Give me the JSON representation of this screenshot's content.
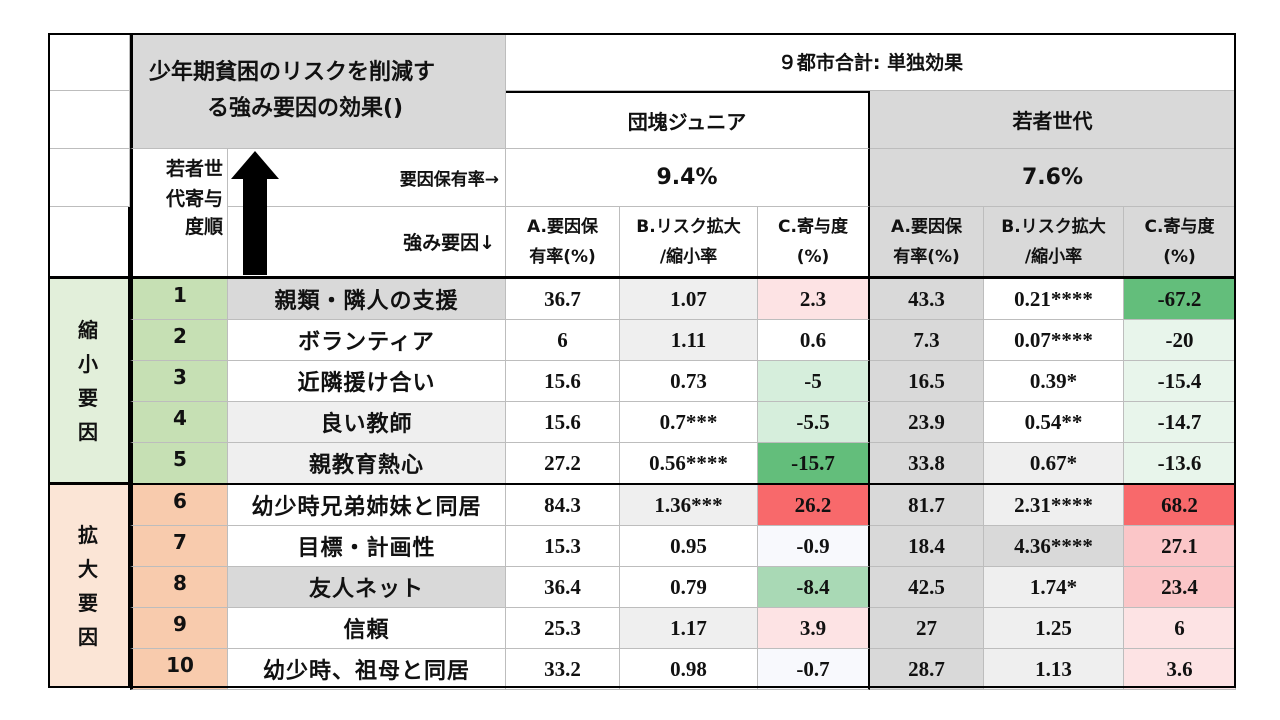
{
  "title_line1": "少年期貧困のリスクを削減す",
  "title_line2": "る強み要因の効果()",
  "city_header": "９都市合計: 単独効果",
  "group1": "団塊ジュニア",
  "group2": "若者世代",
  "rank_header_line1": "若者世",
  "rank_header_line2": "代寄与",
  "rank_header_line3": "度順",
  "prevalence_label": "要因保有率→",
  "factor_label": "強み要因↓",
  "group1_rate": "9.4%",
  "group2_rate": "7.6%",
  "colA_line1": "A.要因保",
  "colA_line2": "有率(%)",
  "colB_line1": "B.リスク拡大",
  "colB_line2": "/縮小率",
  "colC_line1": "C.寄与度",
  "colC_line2": "(%)",
  "side1": [
    "縮",
    "小",
    "要",
    "因"
  ],
  "side2": [
    "拡",
    "大",
    "要",
    "因"
  ],
  "colors": {
    "strong_green": "#63be7b",
    "mid_green": "#a9d9b5",
    "light_green": "#d6eedc",
    "pale_green": "#e8f5eb",
    "strong_red": "#f8696b",
    "light_red": "#fbc6c8",
    "pale_red": "#fde3e4",
    "near_white": "#f8f9fd"
  },
  "rows": [
    {
      "rank": "1",
      "factor": "親類・隣人の支援",
      "a1": "36.7",
      "b1": "1.07",
      "c1": "2.3",
      "a2": "43.3",
      "b2": "0.21****",
      "c2": "-67.2"
    },
    {
      "rank": "2",
      "factor": "ボランティア",
      "a1": "6",
      "b1": "1.11",
      "c1": "0.6",
      "a2": "7.3",
      "b2": "0.07****",
      "c2": "-20"
    },
    {
      "rank": "3",
      "factor": "近隣援け合い",
      "a1": "15.6",
      "b1": "0.73",
      "c1": "-5",
      "a2": "16.5",
      "b2": "0.39*",
      "c2": "-15.4"
    },
    {
      "rank": "4",
      "factor": "良い教師",
      "a1": "15.6",
      "b1": "0.7***",
      "c1": "-5.5",
      "a2": "23.9",
      "b2": "0.54**",
      "c2": "-14.7"
    },
    {
      "rank": "5",
      "factor": "親教育熱心",
      "a1": "27.2",
      "b1": "0.56****",
      "c1": "-15.7",
      "a2": "33.8",
      "b2": "0.67*",
      "c2": "-13.6"
    },
    {
      "rank": "6",
      "factor": "幼少時兄弟姉妹と同居",
      "a1": "84.3",
      "b1": "1.36***",
      "c1": "26.2",
      "a2": "81.7",
      "b2": "2.31****",
      "c2": "68.2"
    },
    {
      "rank": "7",
      "factor": "目標・計画性",
      "a1": "15.3",
      "b1": "0.95",
      "c1": "-0.9",
      "a2": "18.4",
      "b2": "4.36****",
      "c2": "27.1"
    },
    {
      "rank": "8",
      "factor": "友人ネット",
      "a1": "36.4",
      "b1": "0.79",
      "c1": "-8.4",
      "a2": "42.5",
      "b2": "1.74*",
      "c2": "23.4"
    },
    {
      "rank": "9",
      "factor": "信頼",
      "a1": "25.3",
      "b1": "1.17",
      "c1": "3.9",
      "a2": "27",
      "b2": "1.25",
      "c2": "6"
    },
    {
      "rank": "10",
      "factor": "幼少時、祖母と同居",
      "a1": "33.2",
      "b1": "0.98",
      "c1": "-0.7",
      "a2": "28.7",
      "b2": "1.13",
      "c2": "3.6"
    }
  ]
}
